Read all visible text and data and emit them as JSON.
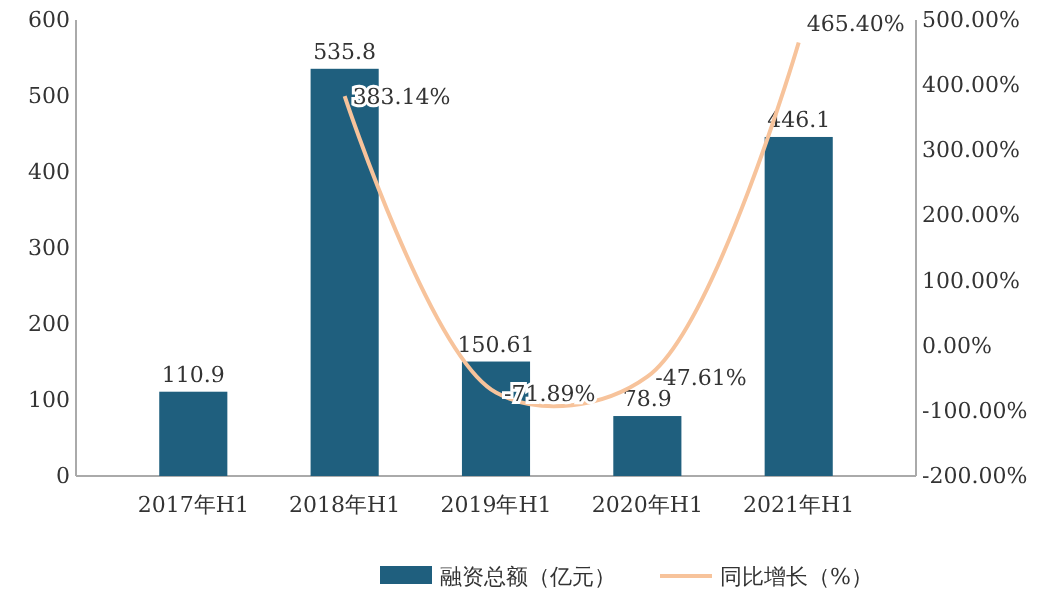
{
  "chart_data": {
    "type": "bar",
    "categories": [
      "2017年H1",
      "2018年H1",
      "2019年H1",
      "2020年H1",
      "2021年H1"
    ],
    "series": [
      {
        "name": "融资总额（亿元）",
        "color": "#1f5f7e",
        "values": [
          110.9,
          535.8,
          150.61,
          78.9,
          446.1
        ],
        "value_labels": [
          "110.9",
          "535.8",
          "150.61",
          "78.9",
          "446.1"
        ]
      },
      {
        "name": "同比增长（%）",
        "type": "line",
        "axis": "y2",
        "color": "#f7c39b",
        "values": [
          null,
          383.14,
          -71.89,
          -47.61,
          465.4
        ],
        "value_labels": [
          null,
          "383.14%",
          "-71.89%",
          "-47.61%",
          "465.40%"
        ]
      }
    ],
    "ylim": [
      0,
      600
    ],
    "yticks": [
      0,
      100,
      200,
      300,
      400,
      500,
      600
    ],
    "y2lim": [
      -200,
      500
    ],
    "y2ticks": [
      {
        "value": -200,
        "label": "-200.00%"
      },
      {
        "value": -100,
        "label": "-100.00%"
      },
      {
        "value": 0,
        "label": "0.00%"
      },
      {
        "value": 100,
        "label": "100.00%"
      },
      {
        "value": 200,
        "label": "200.00%"
      },
      {
        "value": 300,
        "label": "300.00%"
      },
      {
        "value": 400,
        "label": "400.00%"
      },
      {
        "value": 500,
        "label": "500.00%"
      }
    ],
    "legend": "bottom",
    "marker": "none",
    "line_style": "solid"
  }
}
